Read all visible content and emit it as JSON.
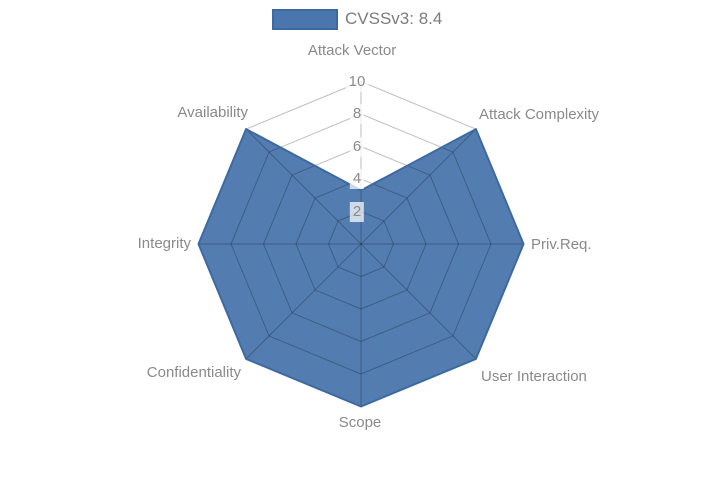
{
  "legend": {
    "label": "CVSSv3: 8.4",
    "swatch_color": "#4a76ad"
  },
  "chart_data": {
    "type": "radar",
    "title": "",
    "categories": [
      "Attack Vector",
      "Attack Complexity",
      "Priv.Req.",
      "User Interaction",
      "Scope",
      "Confidentiality",
      "Integrity",
      "Availability"
    ],
    "series": [
      {
        "name": "CVSSv3: 8.4",
        "values": [
          3.3,
          10,
          10,
          10,
          10,
          10,
          10,
          10
        ]
      }
    ],
    "radial_ticks": [
      2,
      4,
      6,
      8,
      10
    ],
    "rlim": [
      0,
      10
    ],
    "grid": true,
    "legend_position": "top-center",
    "colors": {
      "fill": "#4a76ad",
      "fill_opacity": "0.95",
      "line": "#3c6aa0",
      "grid": "rgba(0,0,0,0.25)",
      "axis_labels": "#8a8a8a",
      "tick_labels": "#8b8b8b"
    }
  }
}
